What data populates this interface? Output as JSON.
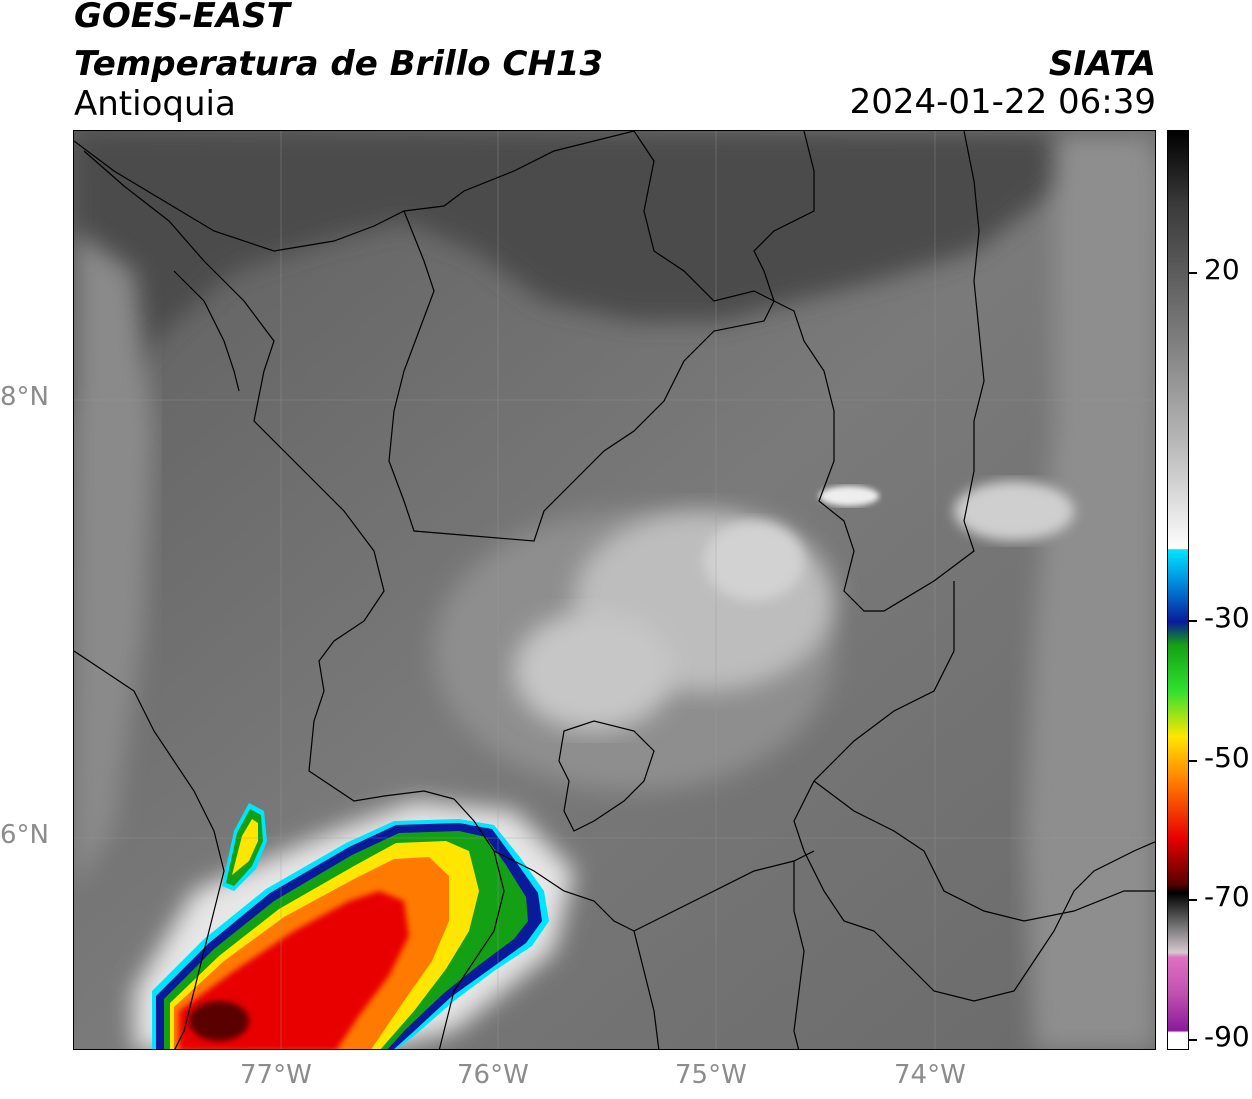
{
  "header": {
    "satellite": "GOES-EAST",
    "product": "Temperatura de Brillo CH13",
    "region": "Antioquia",
    "organization": "SIATA",
    "timestamp": "2024-01-22 06:39"
  },
  "map": {
    "lat_ticks": [
      "8°N",
      "6°N"
    ],
    "lon_ticks": [
      "77°W",
      "76°W",
      "75°W",
      "74°W"
    ],
    "extent": {
      "lon_min": -77.95,
      "lon_max": -72.98,
      "lat_min": 5.0,
      "lat_max": 9.22
    },
    "background_palette": {
      "warm_surface": "#5a5a5a",
      "mid_cloud": "#8a8a8a",
      "cold_cloud": "#d8d8d8"
    }
  },
  "colorbar": {
    "ticks": [
      "20",
      "-30",
      "-50",
      "-70",
      "-90"
    ],
    "tick_values": [
      20,
      -30,
      -50,
      -70,
      -90
    ],
    "range": [
      -92,
      40
    ],
    "colors": {
      "cyan": "#00e5ff",
      "blue": "#0a1a9a",
      "green": "#14a014",
      "yellow": "#ffe600",
      "orange": "#ff7a00",
      "red": "#e80000",
      "darkred": "#5a0000",
      "black": "#000000",
      "pink": "#e070c0",
      "purple": "#8a1a9a"
    }
  }
}
